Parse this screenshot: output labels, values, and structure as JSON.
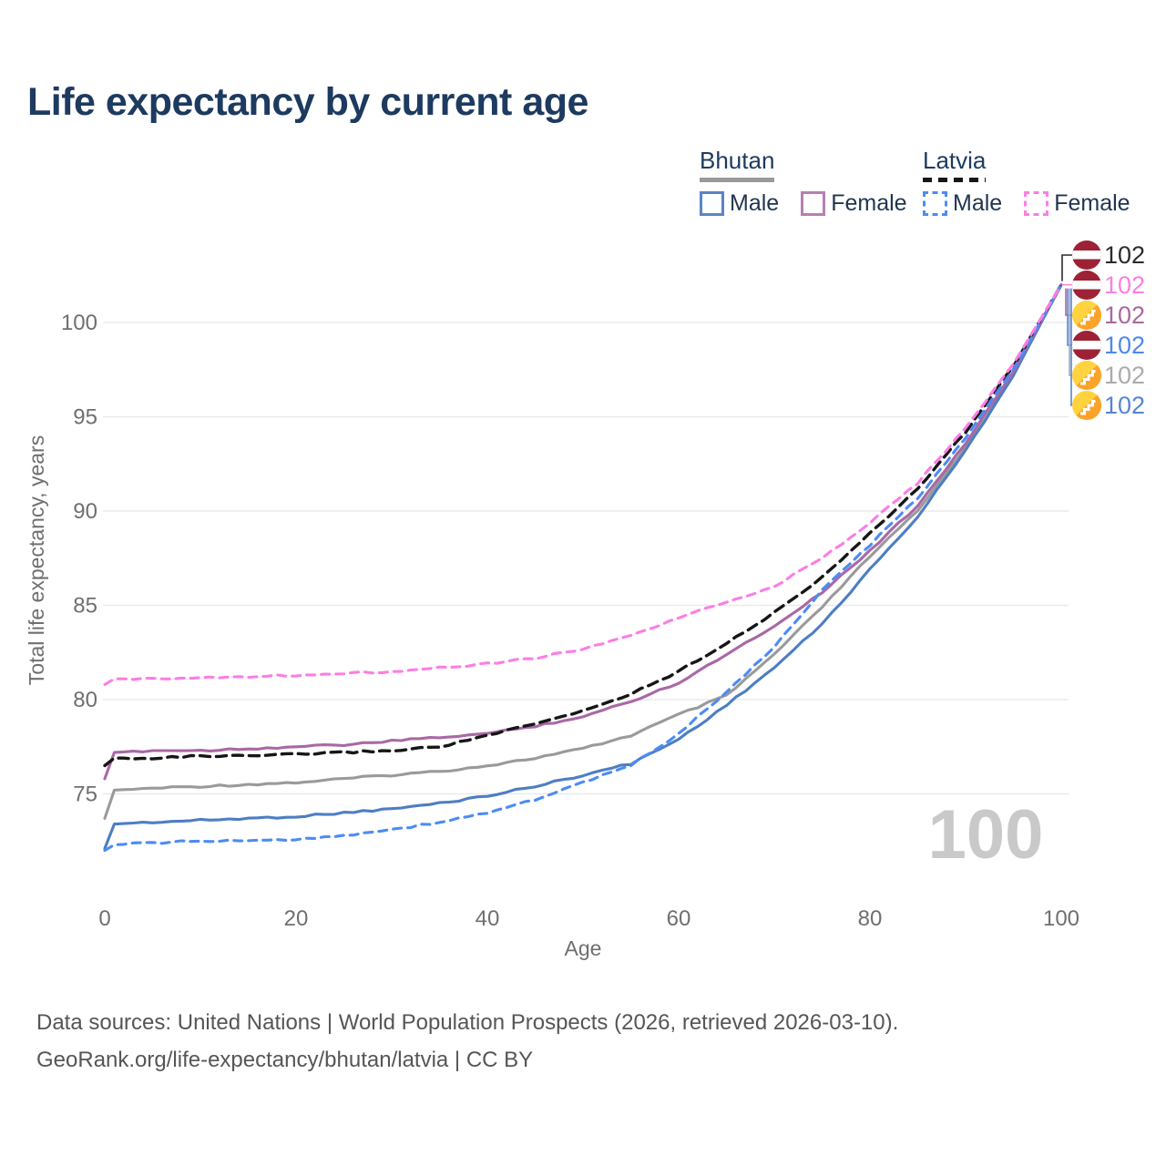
{
  "header": {
    "title": "Life expectancy by current age"
  },
  "legend": {
    "bhutan": {
      "label": "Bhutan",
      "male_label": "Male",
      "female_label": "Female",
      "underline_color": "#9a9a9a",
      "underline_style": "solid",
      "male_color": "#5b84c4",
      "female_color": "#b77fb2"
    },
    "latvia": {
      "label": "Latvia",
      "male_label": "Male",
      "female_label": "Female",
      "underline_color": "#161616",
      "underline_style": "dashed",
      "male_color": "#4d8bf5",
      "female_color": "#fc7ee4"
    }
  },
  "watermark": "100",
  "end_labels": [
    {
      "flag": "latvia",
      "series": "Latvia (both sexes)",
      "value": "102",
      "color": "#2b2b2b"
    },
    {
      "flag": "latvia",
      "series": "Latvia Female",
      "value": "102",
      "color": "#fb7ee3"
    },
    {
      "flag": "bhutan",
      "series": "Bhutan Female",
      "value": "102",
      "color": "#a8689e"
    },
    {
      "flag": "latvia",
      "series": "Latvia Male",
      "value": "102",
      "color": "#4f88e8"
    },
    {
      "flag": "bhutan",
      "series": "Bhutan (both sexes)",
      "value": "102",
      "color": "#ababab"
    },
    {
      "flag": "bhutan",
      "series": "Bhutan Male",
      "value": "102",
      "color": "#5585d6"
    }
  ],
  "footer": {
    "line1": "Data sources: United Nations | World Population Prospects (2026, retrieved 2026-03-10).",
    "line2": "GeoRank.org/life-expectancy/bhutan/latvia | CC BY"
  },
  "chart_data": {
    "type": "line",
    "title": "Life expectancy by current age",
    "xlabel": "Age",
    "ylabel": "Total life expectancy, years",
    "x_ticks": [
      0,
      20,
      40,
      60,
      80,
      100
    ],
    "y_ticks": [
      75,
      80,
      85,
      90,
      95,
      100
    ],
    "xlim": [
      0,
      100
    ],
    "ylim": [
      71.5,
      102.5
    ],
    "grid": true,
    "legend_position": "top-right",
    "ages": [
      0,
      1,
      5,
      10,
      15,
      20,
      25,
      30,
      35,
      40,
      45,
      50,
      55,
      60,
      65,
      70,
      75,
      80,
      85,
      90,
      95,
      100
    ],
    "series": [
      {
        "name": "Bhutan (both sexes)",
        "country": "Bhutan",
        "sex": "both",
        "style": "solid",
        "color": "#9a9a9a",
        "values": [
          73.7,
          75.2,
          75.3,
          75.4,
          75.5,
          75.6,
          75.8,
          76.0,
          76.2,
          76.5,
          76.9,
          77.4,
          78.1,
          79.2,
          80.2,
          82.4,
          84.9,
          87.6,
          90.0,
          93.4,
          97.3,
          102
        ]
      },
      {
        "name": "Bhutan Male",
        "country": "Bhutan",
        "sex": "male",
        "style": "solid",
        "color": "#4d7ec3",
        "values": [
          72.1,
          73.4,
          73.5,
          73.6,
          73.7,
          73.8,
          74.0,
          74.2,
          74.5,
          74.9,
          75.4,
          76.0,
          76.6,
          77.9,
          79.7,
          81.7,
          84.0,
          86.9,
          89.7,
          93.2,
          97.2,
          102
        ]
      },
      {
        "name": "Bhutan Female",
        "country": "Bhutan",
        "sex": "female",
        "style": "solid",
        "color": "#a968a5",
        "values": [
          75.8,
          77.2,
          77.3,
          77.3,
          77.4,
          77.5,
          77.6,
          77.8,
          78.0,
          78.2,
          78.6,
          79.1,
          79.9,
          80.9,
          82.4,
          83.9,
          85.7,
          87.9,
          90.3,
          93.6,
          97.4,
          102
        ]
      },
      {
        "name": "Latvia (both sexes)",
        "country": "Latvia",
        "sex": "both",
        "style": "dashed",
        "color": "#161616",
        "values": [
          76.5,
          76.9,
          76.9,
          77.0,
          77.0,
          77.1,
          77.2,
          77.3,
          77.5,
          78.1,
          78.7,
          79.4,
          80.3,
          81.5,
          83.0,
          84.6,
          86.5,
          88.8,
          91.2,
          94.2,
          97.7,
          102
        ]
      },
      {
        "name": "Latvia Male",
        "country": "Latvia",
        "sex": "male",
        "style": "dashed",
        "color": "#4d8bf5",
        "values": [
          72.0,
          72.3,
          72.4,
          72.5,
          72.5,
          72.6,
          72.8,
          73.1,
          73.5,
          74.0,
          74.7,
          75.6,
          76.5,
          78.2,
          80.4,
          82.8,
          85.8,
          88.2,
          90.7,
          93.9,
          97.5,
          102
        ]
      },
      {
        "name": "Latvia Female",
        "country": "Latvia",
        "sex": "female",
        "style": "dashed",
        "color": "#fc7ee4",
        "values": [
          80.8,
          81.1,
          81.1,
          81.2,
          81.2,
          81.3,
          81.4,
          81.5,
          81.7,
          81.9,
          82.2,
          82.7,
          83.4,
          84.3,
          85.2,
          86.0,
          87.5,
          89.4,
          91.5,
          94.4,
          97.8,
          102
        ]
      }
    ],
    "end_value": 102,
    "colors": {
      "grid": "#eaeaea",
      "tick_text": "#6f6f6f",
      "axis_title": "#6f6f6f",
      "watermark": "#c9c9c9",
      "latvia_flag": "#9d2235",
      "bhutan_flag_yellow": "#ffd23f",
      "bhutan_flag_orange": "#fca32a"
    }
  }
}
